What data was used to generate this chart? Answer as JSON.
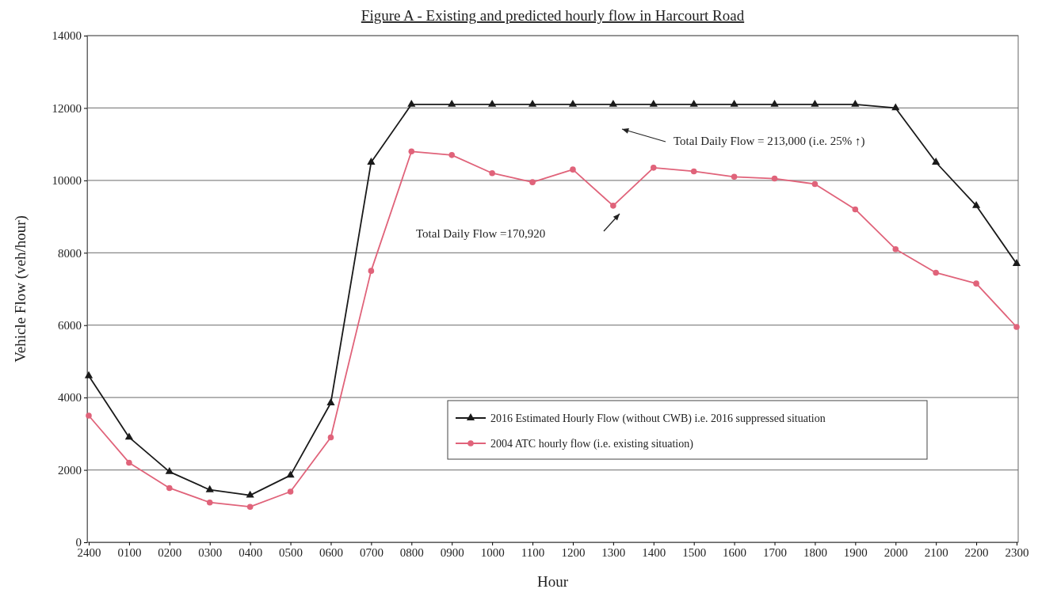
{
  "chart_data": {
    "type": "line",
    "title": "Figure A - Existing and predicted hourly flow in Harcourt Road",
    "xlabel": "Hour",
    "ylabel": "Vehicle Flow (veh/hour)",
    "categories": [
      "2400",
      "0100",
      "0200",
      "0300",
      "0400",
      "0500",
      "0600",
      "0700",
      "0800",
      "0900",
      "1000",
      "1100",
      "1200",
      "1300",
      "1400",
      "1500",
      "1600",
      "1700",
      "1800",
      "1900",
      "2000",
      "2100",
      "2200",
      "2300"
    ],
    "series": [
      {
        "name": "2016 Estimated Hourly Flow (without CWB) i.e. 2016 suppressed situation",
        "color": "#1a1a1a",
        "marker": "triangle",
        "values": [
          4600,
          2900,
          1950,
          1450,
          1300,
          1850,
          3850,
          10500,
          12100,
          12100,
          12100,
          12100,
          12100,
          12100,
          12100,
          12100,
          12100,
          12100,
          12100,
          12100,
          12000,
          10500,
          9300,
          7700
        ]
      },
      {
        "name": "2004 ATC hourly flow (i.e. existing situation)",
        "color": "#e0637a",
        "marker": "circle",
        "values": [
          3500,
          2200,
          1500,
          1100,
          980,
          1400,
          2900,
          7500,
          10800,
          10700,
          10200,
          9950,
          10300,
          9300,
          10350,
          10250,
          10100,
          10050,
          9900,
          9200,
          8100,
          7450,
          7150,
          5950
        ]
      }
    ],
    "ylim": [
      0,
      14000
    ],
    "yticks": [
      0,
      2000,
      4000,
      6000,
      8000,
      10000,
      12000,
      14000
    ],
    "grid": "y",
    "legend": "bottom right",
    "line_style": "solid",
    "annotations": [
      "Total Daily Flow = 213,000 (i.e. 25% ↑)",
      "Total Daily Flow =170,920"
    ]
  }
}
